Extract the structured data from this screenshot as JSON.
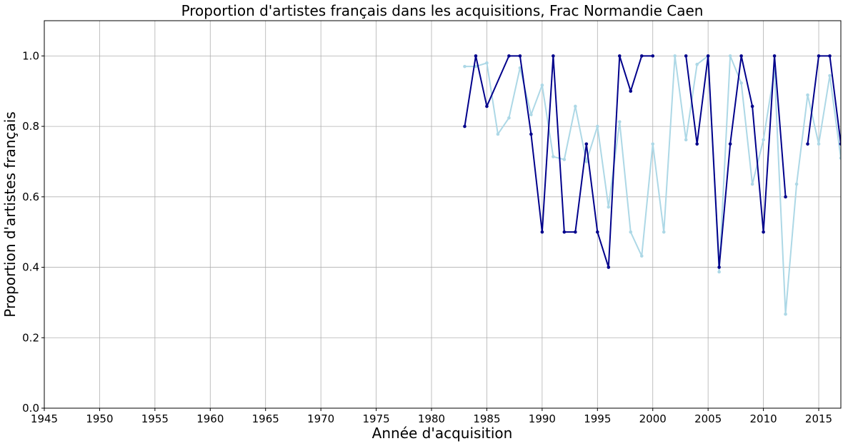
{
  "chart_data": {
    "type": "line",
    "title": "Proportion d'artistes français dans les acquisitions, Frac Normandie Caen",
    "xlabel": "Année d'acquisition",
    "ylabel": "Proportion d'artistes français",
    "xlim": [
      1945,
      2017
    ],
    "ylim": [
      0,
      1.1
    ],
    "xticks": [
      1945,
      1950,
      1955,
      1960,
      1965,
      1970,
      1975,
      1980,
      1985,
      1990,
      1995,
      2000,
      2005,
      2010,
      2015
    ],
    "yticks": [
      0.0,
      0.2,
      0.4,
      0.6,
      0.8,
      1.0
    ],
    "ytick_labels": [
      "0.0",
      "0.2",
      "0.4",
      "0.6",
      "0.8",
      "1.0"
    ],
    "grid": true,
    "series": [
      {
        "color": "#add8e6",
        "points": [
          [
            1983,
            0.97
          ],
          [
            1984,
            0.97
          ],
          [
            1985,
            0.98
          ],
          [
            1986,
            0.778
          ],
          [
            1987,
            0.824
          ],
          [
            1988,
            0.966
          ],
          [
            1989,
            0.833
          ],
          [
            1990,
            0.917
          ],
          [
            1991,
            0.714
          ],
          [
            1992,
            0.706
          ],
          [
            1993,
            0.857
          ],
          [
            1994,
            0.7
          ],
          [
            1995,
            0.8
          ],
          [
            1996,
            0.571
          ],
          [
            1997,
            0.813
          ],
          [
            1998,
            0.5
          ],
          [
            1999,
            0.432
          ],
          [
            2000,
            0.75
          ],
          [
            2001,
            0.5
          ],
          [
            2002,
            1.0
          ],
          [
            2003,
            0.762
          ],
          [
            2004,
            0.976
          ],
          [
            2005,
            1.0
          ],
          [
            2006,
            0.387
          ],
          [
            2007,
            1.0
          ],
          [
            2008,
            0.923
          ],
          [
            2009,
            0.636
          ],
          [
            2010,
            0.762
          ],
          [
            2011,
            0.96
          ],
          [
            2012,
            0.267
          ],
          [
            2013,
            0.636
          ],
          [
            2014,
            0.889
          ],
          [
            2015,
            0.75
          ],
          [
            2016,
            0.944
          ],
          [
            2017,
            0.71
          ]
        ]
      },
      {
        "color": "#00008b",
        "points": [
          [
            1983,
            0.8
          ],
          [
            1984,
            1.0
          ],
          [
            1985,
            0.857
          ],
          [
            1987,
            1.0
          ],
          [
            1988,
            1.0
          ],
          [
            1989,
            0.778
          ],
          [
            1990,
            0.5
          ],
          [
            1991,
            1.0
          ],
          [
            1992,
            0.5
          ],
          [
            1993,
            0.5
          ],
          [
            1994,
            0.75
          ],
          [
            1995,
            0.5
          ],
          [
            1996,
            0.4
          ],
          [
            1997,
            1.0
          ],
          [
            1998,
            0.9
          ],
          [
            1999,
            1.0
          ],
          [
            2000,
            1.0
          ],
          null,
          [
            2003,
            1.0
          ],
          [
            2004,
            0.75
          ],
          [
            2005,
            1.0
          ],
          [
            2006,
            0.4
          ],
          [
            2007,
            0.75
          ],
          [
            2008,
            1.0
          ],
          [
            2009,
            0.857
          ],
          [
            2010,
            0.5
          ],
          [
            2011,
            1.0
          ],
          [
            2012,
            0.6
          ],
          null,
          [
            2014,
            0.75
          ],
          [
            2015,
            1.0
          ],
          [
            2016,
            1.0
          ],
          [
            2017,
            0.75
          ]
        ]
      }
    ]
  }
}
